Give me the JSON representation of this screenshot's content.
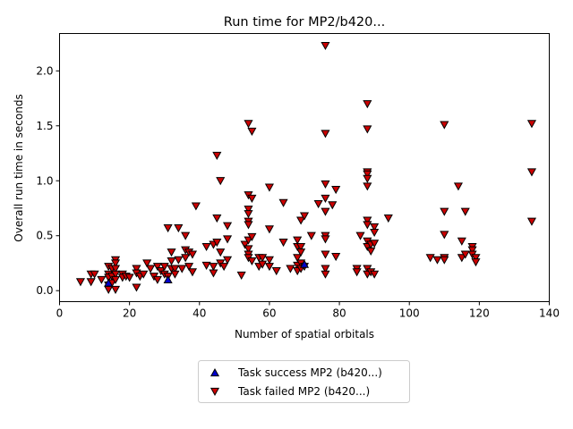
{
  "chart_data": {
    "type": "scatter",
    "title": "Run time for MP2/b420...",
    "xlabel": "Number of spatial orbitals",
    "ylabel": "Overall run time in seconds",
    "xlim": [
      0,
      140
    ],
    "ylim": [
      -0.1,
      2.34
    ],
    "xticks": [
      "0",
      "20",
      "40",
      "60",
      "80",
      "100",
      "120",
      "140"
    ],
    "yticks": [
      "0.0",
      "0.5",
      "1.0",
      "1.5",
      "2.0"
    ],
    "grid": false,
    "legend_position": "below",
    "colors": {
      "success": "#0000cc",
      "failed": "#cc0000"
    },
    "series": [
      {
        "name": "Task success MP2 (b420...)",
        "marker": "triangle-up",
        "points": [
          [
            14,
            0.07
          ],
          [
            31,
            0.1
          ],
          [
            70,
            0.24
          ]
        ]
      },
      {
        "name": "Task failed MP2 (b420...)",
        "marker": "triangle-down",
        "points": [
          [
            6,
            0.08
          ],
          [
            9,
            0.15
          ],
          [
            9,
            0.08
          ],
          [
            10,
            0.15
          ],
          [
            12,
            0.1
          ],
          [
            14,
            0.22
          ],
          [
            14,
            0.15
          ],
          [
            14,
            0.12
          ],
          [
            14,
            0.05
          ],
          [
            14,
            0.01
          ],
          [
            15,
            0.2
          ],
          [
            15,
            0.13
          ],
          [
            15,
            0.07
          ],
          [
            16,
            0.28
          ],
          [
            16,
            0.25
          ],
          [
            16,
            0.2
          ],
          [
            16,
            0.15
          ],
          [
            16,
            0.1
          ],
          [
            16,
            0.01
          ],
          [
            18,
            0.15
          ],
          [
            18,
            0.12
          ],
          [
            19,
            0.13
          ],
          [
            20,
            0.12
          ],
          [
            22,
            0.2
          ],
          [
            22,
            0.16
          ],
          [
            22,
            0.03
          ],
          [
            23,
            0.13
          ],
          [
            24,
            0.15
          ],
          [
            25,
            0.25
          ],
          [
            26,
            0.2
          ],
          [
            27,
            0.13
          ],
          [
            28,
            0.22
          ],
          [
            28,
            0.1
          ],
          [
            29,
            0.18
          ],
          [
            30,
            0.22
          ],
          [
            30,
            0.15
          ],
          [
            31,
            0.57
          ],
          [
            31,
            0.13
          ],
          [
            32,
            0.35
          ],
          [
            32,
            0.27
          ],
          [
            32,
            0.2
          ],
          [
            33,
            0.2
          ],
          [
            33,
            0.15
          ],
          [
            34,
            0.57
          ],
          [
            34,
            0.28
          ],
          [
            35,
            0.2
          ],
          [
            36,
            0.5
          ],
          [
            36,
            0.37
          ],
          [
            36,
            0.3
          ],
          [
            37,
            0.35
          ],
          [
            37,
            0.22
          ],
          [
            38,
            0.33
          ],
          [
            38,
            0.17
          ],
          [
            39,
            0.77
          ],
          [
            42,
            0.4
          ],
          [
            42,
            0.23
          ],
          [
            44,
            0.42
          ],
          [
            44,
            0.22
          ],
          [
            44,
            0.16
          ],
          [
            45,
            1.23
          ],
          [
            45,
            0.66
          ],
          [
            45,
            0.44
          ],
          [
            46,
            1.0
          ],
          [
            46,
            0.35
          ],
          [
            46,
            0.25
          ],
          [
            47,
            0.22
          ],
          [
            48,
            0.59
          ],
          [
            48,
            0.47
          ],
          [
            48,
            0.28
          ],
          [
            52,
            0.14
          ],
          [
            53,
            0.42
          ],
          [
            54,
            1.52
          ],
          [
            54,
            0.87
          ],
          [
            54,
            0.74
          ],
          [
            54,
            0.7
          ],
          [
            54,
            0.63
          ],
          [
            54,
            0.6
          ],
          [
            54,
            0.46
          ],
          [
            54,
            0.38
          ],
          [
            54,
            0.33
          ],
          [
            54,
            0.3
          ],
          [
            55,
            1.45
          ],
          [
            55,
            0.84
          ],
          [
            55,
            0.49
          ],
          [
            55,
            0.27
          ],
          [
            57,
            0.3
          ],
          [
            57,
            0.22
          ],
          [
            58,
            0.3
          ],
          [
            58,
            0.24
          ],
          [
            60,
            0.94
          ],
          [
            60,
            0.56
          ],
          [
            60,
            0.28
          ],
          [
            60,
            0.22
          ],
          [
            62,
            0.18
          ],
          [
            64,
            0.8
          ],
          [
            64,
            0.44
          ],
          [
            66,
            0.2
          ],
          [
            68,
            0.46
          ],
          [
            68,
            0.4
          ],
          [
            68,
            0.3
          ],
          [
            68,
            0.23
          ],
          [
            68,
            0.18
          ],
          [
            69,
            0.64
          ],
          [
            69,
            0.4
          ],
          [
            69,
            0.35
          ],
          [
            69,
            0.25
          ],
          [
            69,
            0.2
          ],
          [
            70,
            0.68
          ],
          [
            70,
            0.22
          ],
          [
            72,
            0.5
          ],
          [
            74,
            0.79
          ],
          [
            76,
            2.23
          ],
          [
            76,
            1.43
          ],
          [
            76,
            0.97
          ],
          [
            76,
            0.84
          ],
          [
            76,
            0.72
          ],
          [
            76,
            0.5
          ],
          [
            76,
            0.47
          ],
          [
            76,
            0.33
          ],
          [
            76,
            0.2
          ],
          [
            76,
            0.15
          ],
          [
            78,
            0.78
          ],
          [
            79,
            0.92
          ],
          [
            79,
            0.31
          ],
          [
            85,
            0.2
          ],
          [
            85,
            0.17
          ],
          [
            86,
            0.5
          ],
          [
            88,
            1.7
          ],
          [
            88,
            1.47
          ],
          [
            88,
            1.08
          ],
          [
            88,
            1.06
          ],
          [
            88,
            1.02
          ],
          [
            88,
            0.95
          ],
          [
            88,
            0.64
          ],
          [
            88,
            0.6
          ],
          [
            88,
            0.45
          ],
          [
            88,
            0.4
          ],
          [
            88,
            0.2
          ],
          [
            88,
            0.15
          ],
          [
            89,
            0.42
          ],
          [
            89,
            0.36
          ],
          [
            89,
            0.17
          ],
          [
            90,
            0.58
          ],
          [
            90,
            0.53
          ],
          [
            90,
            0.43
          ],
          [
            90,
            0.15
          ],
          [
            94,
            0.66
          ],
          [
            106,
            0.3
          ],
          [
            108,
            0.28
          ],
          [
            110,
            1.51
          ],
          [
            110,
            0.72
          ],
          [
            110,
            0.51
          ],
          [
            110,
            0.3
          ],
          [
            110,
            0.28
          ],
          [
            114,
            0.95
          ],
          [
            115,
            0.45
          ],
          [
            115,
            0.3
          ],
          [
            116,
            0.72
          ],
          [
            116,
            0.33
          ],
          [
            118,
            0.4
          ],
          [
            118,
            0.37
          ],
          [
            118,
            0.33
          ],
          [
            119,
            0.3
          ],
          [
            119,
            0.26
          ],
          [
            135,
            1.52
          ],
          [
            135,
            1.08
          ],
          [
            135,
            0.63
          ]
        ]
      }
    ]
  }
}
